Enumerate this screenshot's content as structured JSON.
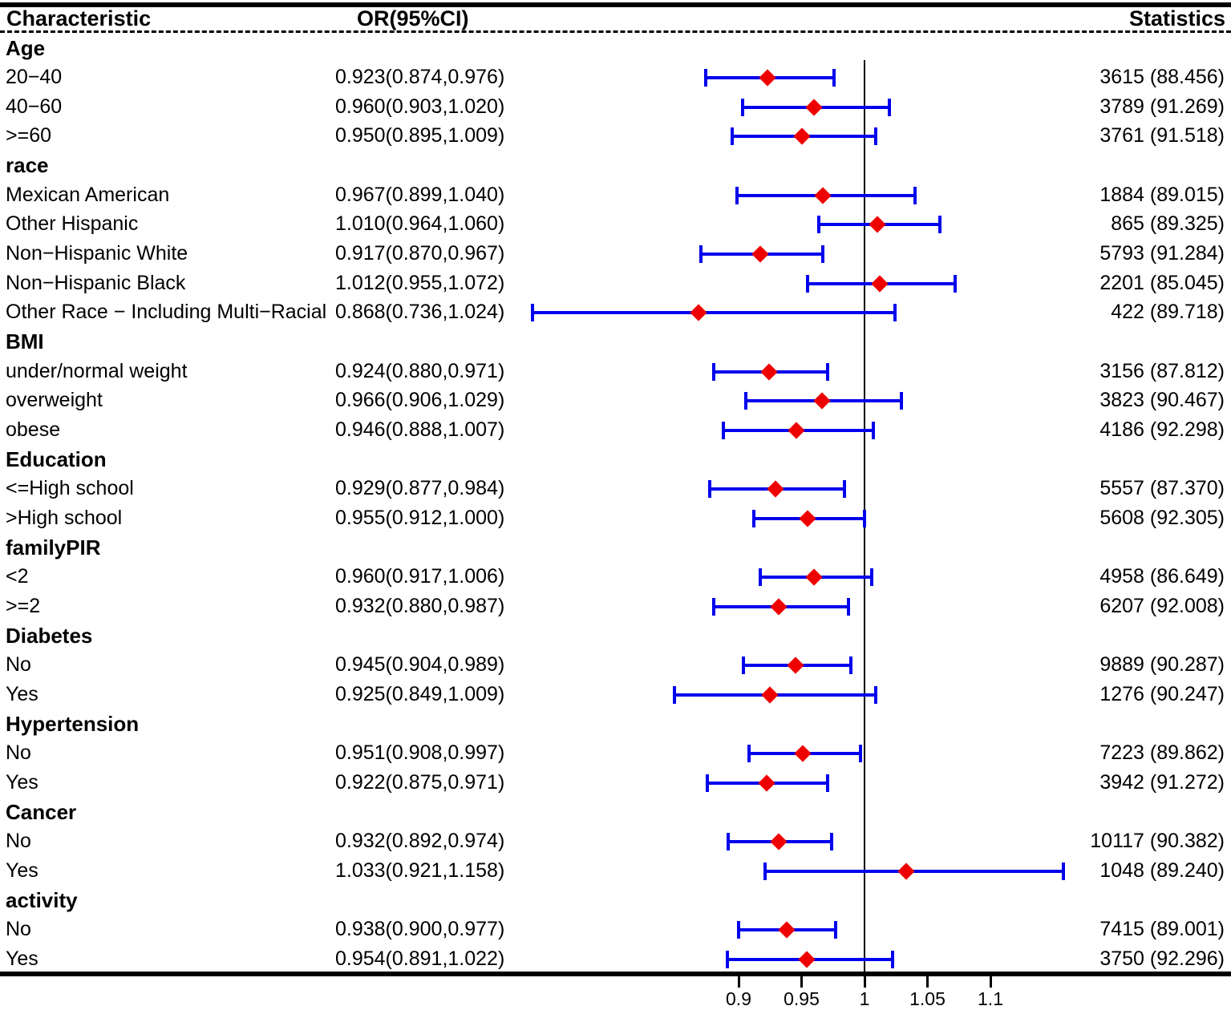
{
  "header": {
    "characteristic": "Characteristic",
    "or_ci": "OR(95%CI)",
    "statistics": "Statistics"
  },
  "colors": {
    "ci_color": "#0000EE",
    "marker_color": "#EE0000",
    "axis_color": "#000000"
  },
  "chart_data": {
    "type": "forest",
    "title": "",
    "xlabel": "",
    "x_axis": {
      "ticks": [
        0.9,
        0.95,
        1,
        1.05,
        1.1
      ],
      "tick_labels": [
        "0.9",
        "0.95",
        "1",
        "1.05",
        "1.1"
      ],
      "reference_line": 1
    },
    "rows": [
      {
        "kind": "group",
        "label": "Age"
      },
      {
        "kind": "item",
        "label": "20−40",
        "or_ci": "0.923(0.874,0.976)",
        "or": 0.923,
        "low": 0.874,
        "high": 0.976,
        "stat": "3615 (88.456)"
      },
      {
        "kind": "item",
        "label": "40−60",
        "or_ci": "0.960(0.903,1.020)",
        "or": 0.96,
        "low": 0.903,
        "high": 1.02,
        "stat": "3789 (91.269)"
      },
      {
        "kind": "item",
        "label": ">=60",
        "or_ci": "0.950(0.895,1.009)",
        "or": 0.95,
        "low": 0.895,
        "high": 1.009,
        "stat": "3761 (91.518)"
      },
      {
        "kind": "group",
        "label": "race"
      },
      {
        "kind": "item",
        "label": "Mexican American",
        "or_ci": "0.967(0.899,1.040)",
        "or": 0.967,
        "low": 0.899,
        "high": 1.04,
        "stat": "1884 (89.015)"
      },
      {
        "kind": "item",
        "label": "Other Hispanic",
        "or_ci": "1.010(0.964,1.060)",
        "or": 1.01,
        "low": 0.964,
        "high": 1.06,
        "stat": "865 (89.325)"
      },
      {
        "kind": "item",
        "label": "Non−Hispanic White",
        "or_ci": "0.917(0.870,0.967)",
        "or": 0.917,
        "low": 0.87,
        "high": 0.967,
        "stat": "5793 (91.284)"
      },
      {
        "kind": "item",
        "label": "Non−Hispanic Black",
        "or_ci": "1.012(0.955,1.072)",
        "or": 1.012,
        "low": 0.955,
        "high": 1.072,
        "stat": "2201 (85.045)"
      },
      {
        "kind": "item",
        "label": "Other Race − Including Multi−Racial",
        "or_ci": "0.868(0.736,1.024)",
        "or": 0.868,
        "low": 0.736,
        "high": 1.024,
        "stat": "422 (89.718)"
      },
      {
        "kind": "group",
        "label": "BMI"
      },
      {
        "kind": "item",
        "label": "under/normal weight",
        "or_ci": "0.924(0.880,0.971)",
        "or": 0.924,
        "low": 0.88,
        "high": 0.971,
        "stat": "3156 (87.812)"
      },
      {
        "kind": "item",
        "label": "overweight",
        "or_ci": "0.966(0.906,1.029)",
        "or": 0.966,
        "low": 0.906,
        "high": 1.029,
        "stat": "3823 (90.467)"
      },
      {
        "kind": "item",
        "label": "obese",
        "or_ci": "0.946(0.888,1.007)",
        "or": 0.946,
        "low": 0.888,
        "high": 1.007,
        "stat": "4186 (92.298)"
      },
      {
        "kind": "group",
        "label": "Education"
      },
      {
        "kind": "item",
        "label": "<=High school",
        "or_ci": "0.929(0.877,0.984)",
        "or": 0.929,
        "low": 0.877,
        "high": 0.984,
        "stat": "5557 (87.370)"
      },
      {
        "kind": "item",
        "label": ">High school",
        "or_ci": "0.955(0.912,1.000)",
        "or": 0.955,
        "low": 0.912,
        "high": 1.0,
        "stat": "5608 (92.305)"
      },
      {
        "kind": "group",
        "label": "familyPIR"
      },
      {
        "kind": "item",
        "label": "<2",
        "or_ci": "0.960(0.917,1.006)",
        "or": 0.96,
        "low": 0.917,
        "high": 1.006,
        "stat": "4958 (86.649)"
      },
      {
        "kind": "item",
        "label": ">=2",
        "or_ci": "0.932(0.880,0.987)",
        "or": 0.932,
        "low": 0.88,
        "high": 0.987,
        "stat": "6207 (92.008)"
      },
      {
        "kind": "group",
        "label": "Diabetes"
      },
      {
        "kind": "item",
        "label": "No",
        "or_ci": "0.945(0.904,0.989)",
        "or": 0.945,
        "low": 0.904,
        "high": 0.989,
        "stat": "9889 (90.287)"
      },
      {
        "kind": "item",
        "label": "Yes",
        "or_ci": "0.925(0.849,1.009)",
        "or": 0.925,
        "low": 0.849,
        "high": 1.009,
        "stat": "1276 (90.247)"
      },
      {
        "kind": "group",
        "label": "Hypertension"
      },
      {
        "kind": "item",
        "label": "No",
        "or_ci": "0.951(0.908,0.997)",
        "or": 0.951,
        "low": 0.908,
        "high": 0.997,
        "stat": "7223 (89.862)"
      },
      {
        "kind": "item",
        "label": "Yes",
        "or_ci": "0.922(0.875,0.971)",
        "or": 0.922,
        "low": 0.875,
        "high": 0.971,
        "stat": "3942 (91.272)"
      },
      {
        "kind": "group",
        "label": "Cancer"
      },
      {
        "kind": "item",
        "label": "No",
        "or_ci": "0.932(0.892,0.974)",
        "or": 0.932,
        "low": 0.892,
        "high": 0.974,
        "stat": "10117 (90.382)"
      },
      {
        "kind": "item",
        "label": "Yes",
        "or_ci": "1.033(0.921,1.158)",
        "or": 1.033,
        "low": 0.921,
        "high": 1.158,
        "stat": "1048 (89.240)"
      },
      {
        "kind": "group",
        "label": "activity"
      },
      {
        "kind": "item",
        "label": "No",
        "or_ci": "0.938(0.900,0.977)",
        "or": 0.938,
        "low": 0.9,
        "high": 0.977,
        "stat": "7415 (89.001)"
      },
      {
        "kind": "item",
        "label": "Yes",
        "or_ci": "0.954(0.891,1.022)",
        "or": 0.954,
        "low": 0.891,
        "high": 1.022,
        "stat": "3750 (92.296)"
      }
    ]
  }
}
